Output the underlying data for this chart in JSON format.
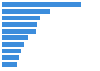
{
  "values": [
    13.6,
    8.2,
    6.5,
    6.0,
    5.8,
    4.5,
    3.8,
    3.3,
    3.0,
    2.6
  ],
  "bar_color": "#3c8ddc",
  "background_color": "#ffffff",
  "xlim": [
    0,
    16.5
  ],
  "bar_height": 0.72,
  "grid_color": "#d9d9d9",
  "grid_linewidth": 0.5
}
